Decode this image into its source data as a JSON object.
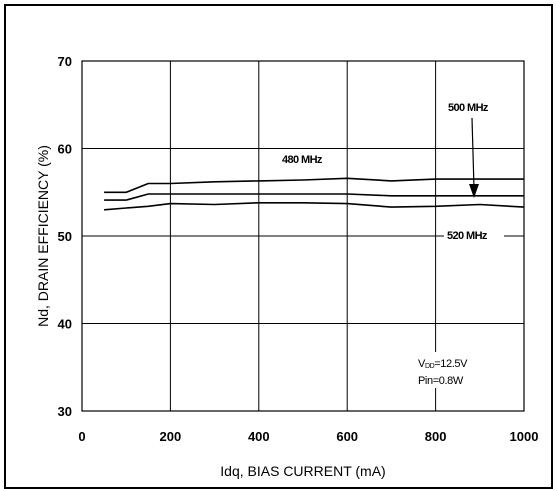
{
  "chart_data": {
    "type": "line",
    "xlabel": "Idq, BIAS CURRENT  (mA)",
    "ylabel": "Nd, DRAIN EFFICIENCY  (%)",
    "xlim": [
      0,
      1000
    ],
    "ylim": [
      30,
      70
    ],
    "x_ticks": [
      "0",
      "200",
      "400",
      "600",
      "800",
      "1000"
    ],
    "y_ticks": [
      "30",
      "40",
      "50",
      "60",
      "70"
    ],
    "grid": true,
    "series": [
      {
        "name": "480 MHz",
        "x": [
          50,
          100,
          150,
          200,
          300,
          400,
          500,
          600,
          700,
          800,
          900,
          1000
        ],
        "y": [
          55.0,
          55.0,
          56.0,
          56.0,
          56.2,
          56.3,
          56.4,
          56.6,
          56.3,
          56.5,
          56.5,
          56.5
        ]
      },
      {
        "name": "500 MHz",
        "x": [
          50,
          100,
          150,
          200,
          300,
          400,
          500,
          600,
          700,
          800,
          900,
          1000
        ],
        "y": [
          54.1,
          54.1,
          54.8,
          54.8,
          54.8,
          54.8,
          54.8,
          54.8,
          54.6,
          54.6,
          54.6,
          54.6
        ]
      },
      {
        "name": "520 MHz",
        "x": [
          50,
          100,
          150,
          200,
          300,
          400,
          500,
          600,
          700,
          800,
          900,
          1000
        ],
        "y": [
          53.0,
          53.2,
          53.4,
          53.7,
          53.6,
          53.8,
          53.8,
          53.7,
          53.3,
          53.4,
          53.6,
          53.3
        ]
      }
    ],
    "annotations": {
      "vdd_prefix": "V",
      "vdd_sub": "DD",
      "vdd_rest": "=12.5V",
      "pin": "Pin=0.8W"
    }
  }
}
